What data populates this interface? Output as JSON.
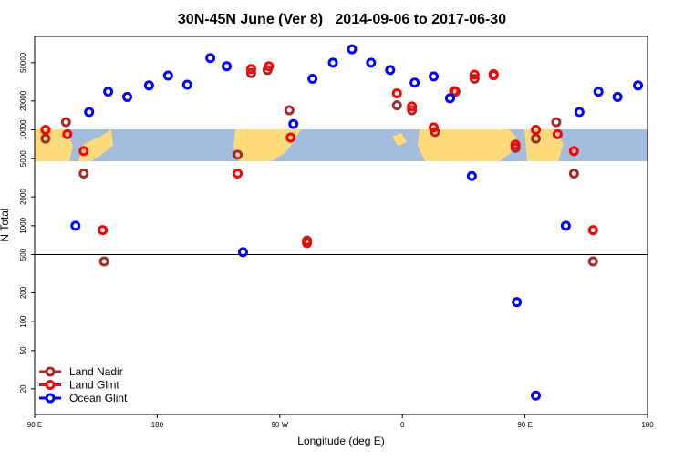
{
  "chart_data": {
    "type": "scatter",
    "title": "30N-45N June (Ver 8)   2014-09-06 to 2017-06-30",
    "x_label": "Longitude (deg E)",
    "y_label": "N Total",
    "xlim": [
      90,
      540
    ],
    "ylim": [
      10.8,
      94000
    ],
    "ylog": true,
    "reference_line": 500,
    "legend": "lower left",
    "xticks": [
      {
        "value": 90,
        "label": "90 E"
      },
      {
        "value": 180,
        "label": "180"
      },
      {
        "value": 270,
        "label": "90 W"
      },
      {
        "value": 360,
        "label": "0"
      },
      {
        "value": 450,
        "label": "90 E"
      },
      {
        "value": 540,
        "label": "180"
      }
    ],
    "yticks": [
      20,
      50,
      100,
      200,
      500,
      1000,
      2000,
      5000,
      10000,
      20000,
      50000
    ],
    "series": [
      {
        "name": "Land Nadir",
        "color": "#a52a2a",
        "x": [
          98,
          113,
          126,
          141,
          239,
          249,
          261,
          277,
          290,
          356,
          367,
          384,
          399,
          413,
          427,
          443,
          458,
          473,
          486,
          500
        ],
        "values": [
          8100,
          12000,
          3500,
          425,
          5500,
          39000,
          42000,
          16000,
          700,
          18000,
          16000,
          9500,
          25000,
          34000,
          38000,
          6500,
          8100,
          12000,
          3500,
          425
        ]
      },
      {
        "name": "Land Glint",
        "color": "#ff0000",
        "x": [
          98,
          114,
          126,
          140,
          239,
          249,
          262,
          278,
          290,
          356,
          367,
          383,
          398,
          413,
          427,
          443,
          458,
          474,
          486,
          500
        ],
        "values": [
          10000,
          9000,
          6000,
          900,
          3500,
          43000,
          46000,
          8300,
          660,
          24000,
          17500,
          10600,
          25300,
          37500,
          37000,
          7000,
          10000,
          9000,
          6000,
          900
        ]
      },
      {
        "name": "Ocean Glint",
        "color": "#0000ff",
        "x": [
          120,
          130,
          144,
          158,
          174,
          188,
          202,
          219,
          231,
          243,
          280,
          294,
          309,
          323,
          337,
          351,
          369,
          383,
          395,
          411,
          444,
          458,
          480,
          490,
          504,
          518,
          533
        ],
        "values": [
          1000,
          15300,
          25000,
          22000,
          29000,
          36700,
          29500,
          56000,
          46000,
          530,
          11500,
          34000,
          50000,
          69000,
          50000,
          42000,
          31000,
          36000,
          21300,
          3300,
          160,
          17,
          1000,
          15300,
          25000,
          22000,
          29000
        ]
      }
    ]
  }
}
